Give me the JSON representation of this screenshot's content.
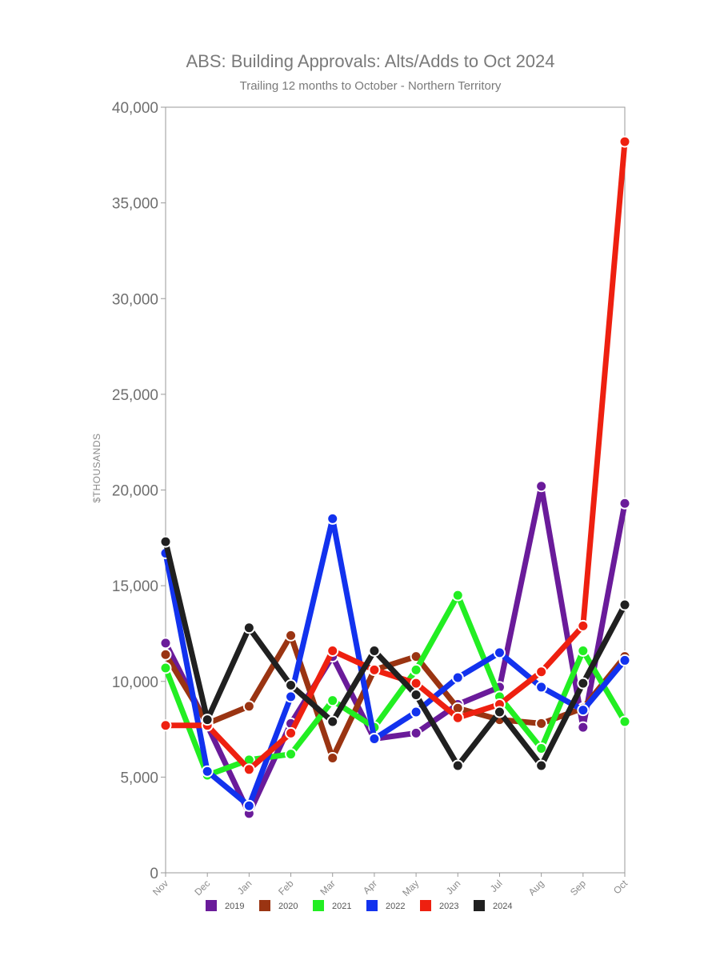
{
  "chart_data": {
    "type": "line",
    "title": "ABS: Building Approvals: Alts/Adds to Oct 2024",
    "subtitle": "Trailing 12 months to October - Northern Territory",
    "xlabel": "",
    "ylabel": "$THOUSANDS",
    "categories": [
      "Nov",
      "Dec",
      "Jan",
      "Feb",
      "Mar",
      "Apr",
      "May",
      "Jun",
      "Jul",
      "Aug",
      "Sep",
      "Oct"
    ],
    "ylim": [
      0,
      40000
    ],
    "yticks": [
      0,
      5000,
      10000,
      15000,
      20000,
      25000,
      30000,
      35000,
      40000
    ],
    "ytick_labels": [
      "0",
      "5,000",
      "10,000",
      "15,000",
      "20,000",
      "25,000",
      "30,000",
      "35,000",
      "40,000"
    ],
    "grid": false,
    "legend_position": "bottom",
    "series": [
      {
        "name": "2019",
        "color": "#6a1b9a",
        "values": [
          12000,
          7700,
          3100,
          7800,
          11300,
          7000,
          7300,
          8800,
          9700,
          20200,
          7600,
          19300
        ]
      },
      {
        "name": "2020",
        "color": "#9a3412",
        "values": [
          11400,
          7800,
          8700,
          12400,
          6000,
          10600,
          11300,
          8600,
          8000,
          7800,
          8600,
          11300
        ]
      },
      {
        "name": "2021",
        "color": "#22ee22",
        "values": [
          10700,
          5100,
          5900,
          6200,
          9000,
          7600,
          10600,
          14500,
          9200,
          6500,
          11600,
          7900
        ]
      },
      {
        "name": "2022",
        "color": "#1232ee",
        "values": [
          16700,
          5300,
          3500,
          9200,
          18500,
          7000,
          8400,
          10200,
          11500,
          9700,
          8500,
          11100
        ]
      },
      {
        "name": "2023",
        "color": "#ee2010",
        "values": [
          7700,
          7700,
          5400,
          7300,
          11600,
          10600,
          9900,
          8100,
          8800,
          10500,
          12900,
          38200
        ]
      },
      {
        "name": "2024",
        "color": "#202020",
        "values": [
          17300,
          8000,
          12800,
          9800,
          7900,
          11600,
          9300,
          5600,
          8400,
          5600,
          9900,
          14000
        ]
      }
    ]
  }
}
